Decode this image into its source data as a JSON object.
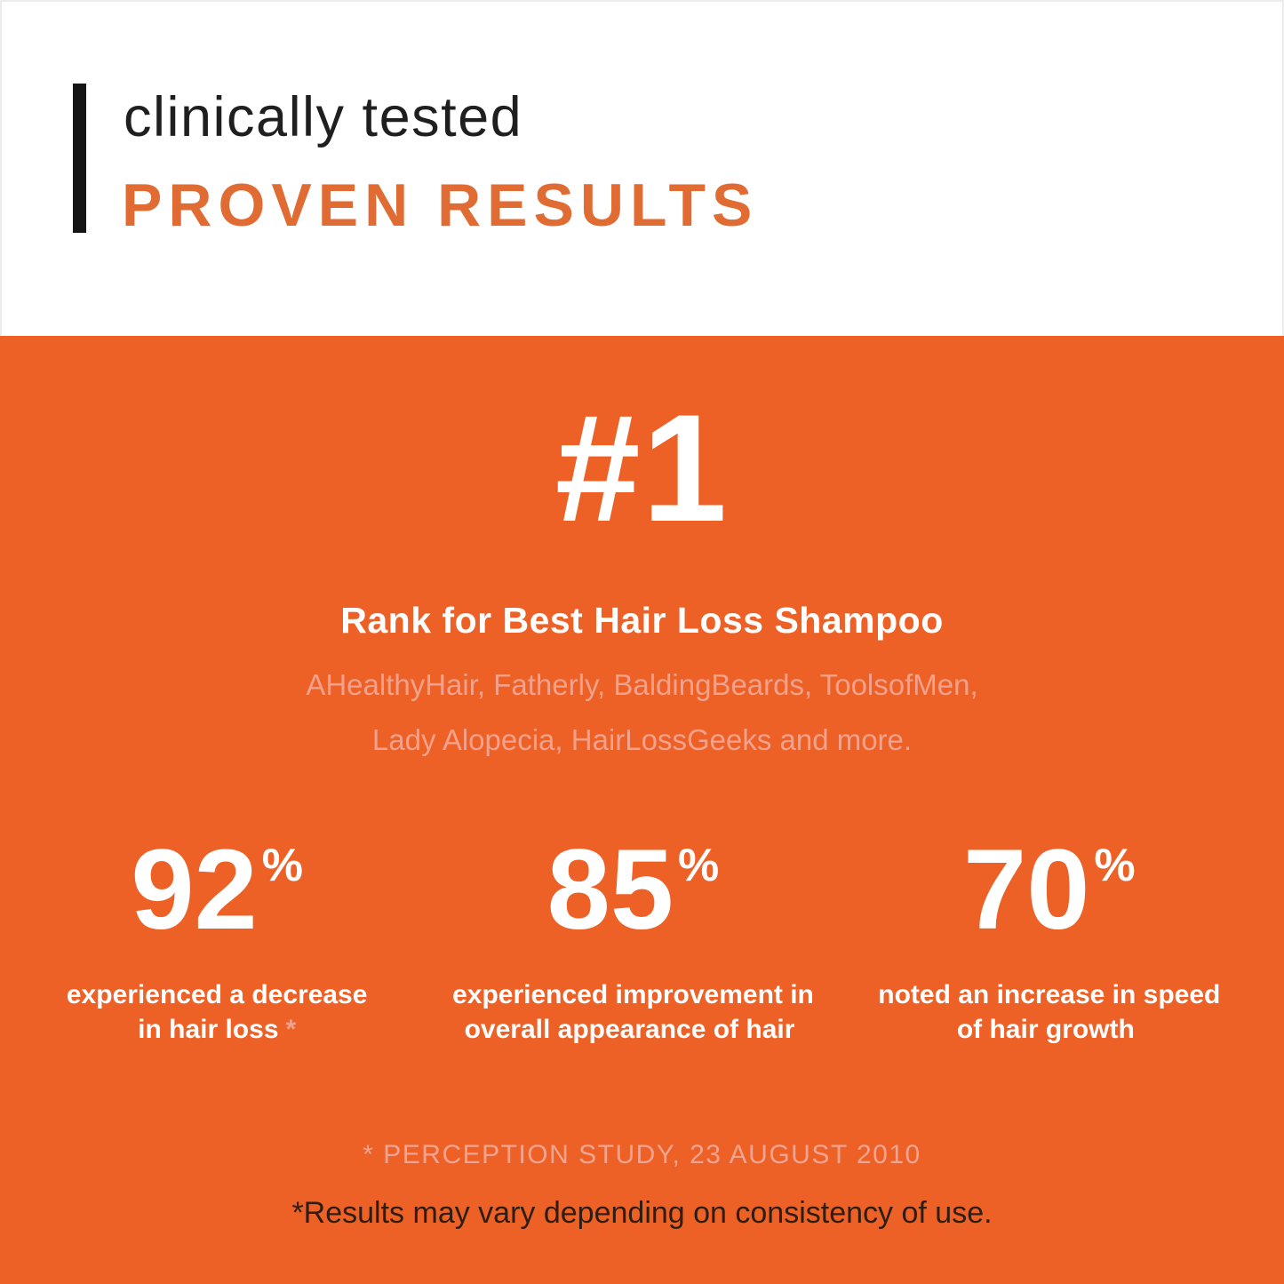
{
  "header": {
    "eyebrow": "clinically tested",
    "title": "PROVEN RESULTS"
  },
  "rank": {
    "number": "#1",
    "title": "Rank for Best Hair Loss Shampoo",
    "publisher_lines": [
      "AHealthyHair, Fatherly, BaldingBeards, ToolsofMen,",
      "Lady Alopecia, HairLossGeeks and more."
    ]
  },
  "stats": [
    {
      "value": "92",
      "unit": "%",
      "caption_line1": "experienced a decrease",
      "caption_line2": "in hair loss",
      "footnote_marker": "*"
    },
    {
      "value": "85",
      "unit": "%",
      "caption_line1": "experienced improvement in",
      "caption_line2": "overall appearance of hair",
      "footnote_marker": ""
    },
    {
      "value": "70",
      "unit": "%",
      "caption_line1": "noted an increase in speed",
      "caption_line2": "of hair growth",
      "footnote_marker": ""
    }
  ],
  "footnotes": {
    "source": "* PERCEPTION STUDY, 23 AUGUST 2010",
    "disclaimer": "*Results may vary depending on consistency of use."
  },
  "colors": {
    "orange_background": "#ED6126",
    "title_orange": "#E06B33",
    "muted_pink": "#F2A28C",
    "dark_footnote_text": "#2E1D12",
    "black_bar": "#151515",
    "white": "#FFFFFF"
  }
}
